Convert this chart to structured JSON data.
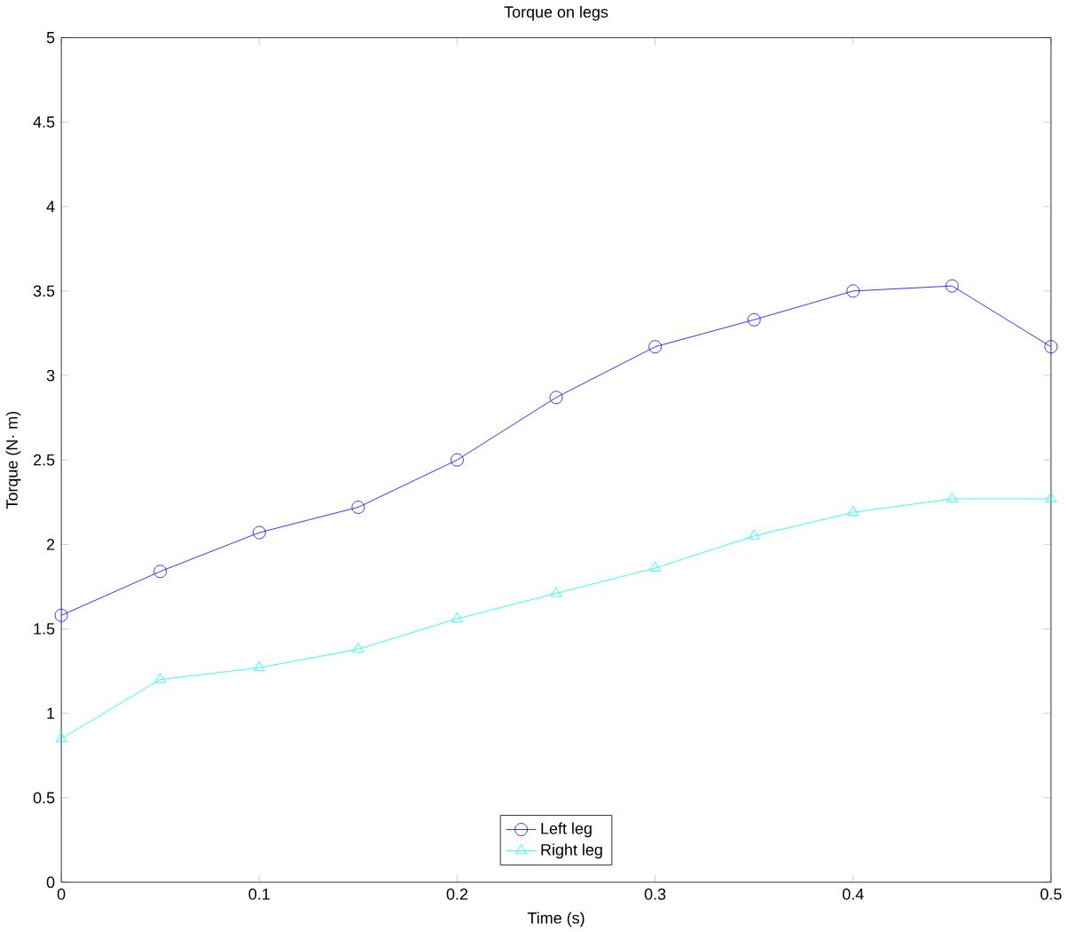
{
  "chart_data": {
    "type": "line",
    "title": "Torque on legs",
    "xlabel": "Time (s)",
    "ylabel": "Torque (N· m)",
    "x": [
      0,
      0.05,
      0.1,
      0.15,
      0.2,
      0.25,
      0.3,
      0.35,
      0.4,
      0.45,
      0.5
    ],
    "series": [
      {
        "name": "Left leg",
        "color": "#0000ff",
        "marker": "circle",
        "values": [
          1.58,
          1.84,
          2.07,
          2.22,
          2.5,
          2.87,
          3.17,
          3.33,
          3.5,
          3.53,
          3.17
        ]
      },
      {
        "name": "Right leg",
        "color": "#00ffff",
        "marker": "triangle",
        "values": [
          0.85,
          1.2,
          1.27,
          1.38,
          1.56,
          1.71,
          1.86,
          2.05,
          2.19,
          2.27,
          2.27
        ]
      }
    ],
    "xlim": [
      0,
      0.5
    ],
    "xticks": [
      0,
      0.1,
      0.2,
      0.3,
      0.4,
      0.5
    ],
    "ylim": [
      0,
      5
    ],
    "yticks": [
      0,
      0.5,
      1,
      1.5,
      2,
      2.5,
      3,
      3.5,
      4,
      4.5,
      5
    ],
    "grid": false,
    "legend": "bottom",
    "line_style": "solid"
  }
}
